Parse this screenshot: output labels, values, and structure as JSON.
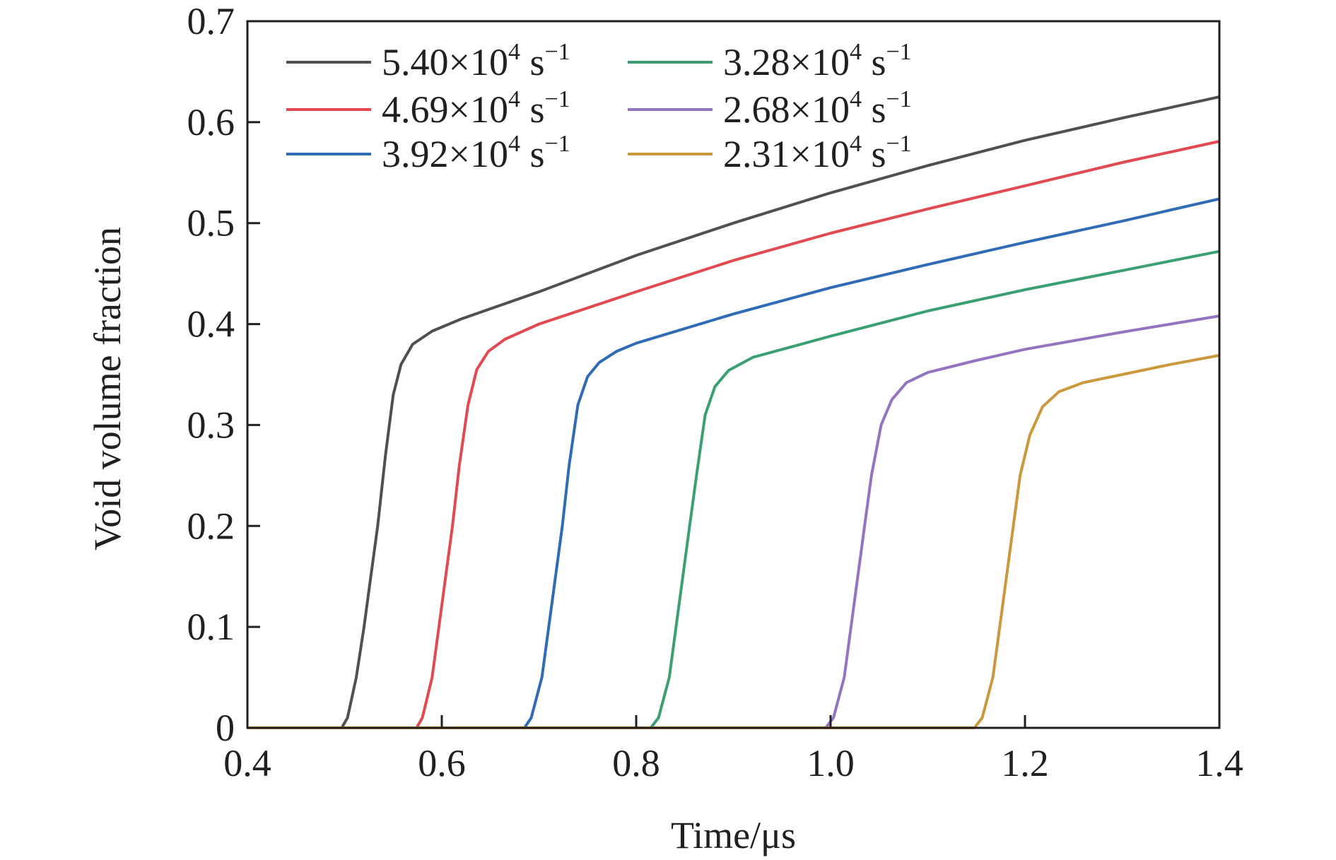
{
  "chart_data": {
    "type": "line",
    "title": "",
    "xlabel": "Time/μs",
    "ylabel": "Void volume fraction",
    "xlim": [
      0.4,
      1.4
    ],
    "ylim": [
      0,
      0.7
    ],
    "xticks": [
      0.4,
      0.6,
      0.8,
      1.0,
      1.2,
      1.4
    ],
    "xtick_labels": [
      "0.4",
      "0.6",
      "0.8",
      "1.0",
      "1.2",
      "1.4"
    ],
    "yticks": [
      0,
      0.1,
      0.2,
      0.3,
      0.4,
      0.5,
      0.6,
      0.7
    ],
    "ytick_labels": [
      "0",
      "0.1",
      "0.2",
      "0.3",
      "0.4",
      "0.5",
      "0.6",
      "0.7"
    ],
    "grid": false,
    "legend_position": "top-left",
    "series": [
      {
        "label_main": "5.40×10",
        "label_exp": "4",
        "label_unit": " s",
        "label_unit_exp": "−1",
        "color": "#505050",
        "points": [
          [
            0.4,
            0
          ],
          [
            0.497,
            0
          ],
          [
            0.503,
            0.01
          ],
          [
            0.512,
            0.05
          ],
          [
            0.52,
            0.1
          ],
          [
            0.527,
            0.15
          ],
          [
            0.534,
            0.2
          ],
          [
            0.542,
            0.27
          ],
          [
            0.55,
            0.33
          ],
          [
            0.558,
            0.36
          ],
          [
            0.57,
            0.38
          ],
          [
            0.59,
            0.393
          ],
          [
            0.62,
            0.405
          ],
          [
            0.7,
            0.432
          ],
          [
            0.8,
            0.468
          ],
          [
            0.9,
            0.5
          ],
          [
            1.0,
            0.53
          ],
          [
            1.1,
            0.557
          ],
          [
            1.2,
            0.582
          ],
          [
            1.3,
            0.604
          ],
          [
            1.4,
            0.625
          ]
        ]
      },
      {
        "label_main": "4.69×10",
        "label_exp": "4",
        "label_unit": " s",
        "label_unit_exp": "−1",
        "color": "#e04a50",
        "points": [
          [
            0.4,
            0
          ],
          [
            0.574,
            0
          ],
          [
            0.58,
            0.01
          ],
          [
            0.59,
            0.05
          ],
          [
            0.597,
            0.1
          ],
          [
            0.604,
            0.15
          ],
          [
            0.611,
            0.2
          ],
          [
            0.618,
            0.26
          ],
          [
            0.627,
            0.32
          ],
          [
            0.636,
            0.355
          ],
          [
            0.648,
            0.373
          ],
          [
            0.665,
            0.385
          ],
          [
            0.7,
            0.4
          ],
          [
            0.8,
            0.432
          ],
          [
            0.9,
            0.463
          ],
          [
            1.0,
            0.49
          ],
          [
            1.1,
            0.514
          ],
          [
            1.2,
            0.537
          ],
          [
            1.3,
            0.56
          ],
          [
            1.4,
            0.581
          ]
        ]
      },
      {
        "label_main": "3.92×10",
        "label_exp": "4",
        "label_unit": " s",
        "label_unit_exp": "−1",
        "color": "#2f6cb5",
        "points": [
          [
            0.4,
            0
          ],
          [
            0.685,
            0
          ],
          [
            0.692,
            0.01
          ],
          [
            0.703,
            0.05
          ],
          [
            0.71,
            0.1
          ],
          [
            0.717,
            0.15
          ],
          [
            0.724,
            0.2
          ],
          [
            0.731,
            0.26
          ],
          [
            0.74,
            0.32
          ],
          [
            0.75,
            0.348
          ],
          [
            0.762,
            0.362
          ],
          [
            0.78,
            0.373
          ],
          [
            0.8,
            0.381
          ],
          [
            0.9,
            0.41
          ],
          [
            1.0,
            0.436
          ],
          [
            1.1,
            0.459
          ],
          [
            1.2,
            0.481
          ],
          [
            1.3,
            0.502
          ],
          [
            1.4,
            0.524
          ]
        ]
      },
      {
        "label_main": "3.28×10",
        "label_exp": "4",
        "label_unit": " s",
        "label_unit_exp": "−1",
        "color": "#3aa071",
        "points": [
          [
            0.4,
            0
          ],
          [
            0.815,
            0
          ],
          [
            0.823,
            0.01
          ],
          [
            0.834,
            0.05
          ],
          [
            0.841,
            0.1
          ],
          [
            0.848,
            0.15
          ],
          [
            0.855,
            0.2
          ],
          [
            0.862,
            0.25
          ],
          [
            0.871,
            0.31
          ],
          [
            0.881,
            0.338
          ],
          [
            0.895,
            0.354
          ],
          [
            0.92,
            0.367
          ],
          [
            1.0,
            0.388
          ],
          [
            1.1,
            0.413
          ],
          [
            1.2,
            0.434
          ],
          [
            1.3,
            0.453
          ],
          [
            1.4,
            0.472
          ]
        ]
      },
      {
        "label_main": "2.68×10",
        "label_exp": "4",
        "label_unit": " s",
        "label_unit_exp": "−1",
        "color": "#9474c0",
        "points": [
          [
            0.4,
            0
          ],
          [
            0.995,
            0
          ],
          [
            1.003,
            0.01
          ],
          [
            1.014,
            0.05
          ],
          [
            1.021,
            0.1
          ],
          [
            1.028,
            0.15
          ],
          [
            1.035,
            0.2
          ],
          [
            1.042,
            0.25
          ],
          [
            1.052,
            0.3
          ],
          [
            1.063,
            0.325
          ],
          [
            1.078,
            0.342
          ],
          [
            1.1,
            0.352
          ],
          [
            1.15,
            0.364
          ],
          [
            1.2,
            0.375
          ],
          [
            1.3,
            0.392
          ],
          [
            1.4,
            0.408
          ]
        ]
      },
      {
        "label_main": "2.31×10",
        "label_exp": "4",
        "label_unit": " s",
        "label_unit_exp": "−1",
        "color": "#c9993c",
        "points": [
          [
            0.4,
            0
          ],
          [
            1.148,
            0
          ],
          [
            1.156,
            0.01
          ],
          [
            1.167,
            0.05
          ],
          [
            1.174,
            0.1
          ],
          [
            1.181,
            0.15
          ],
          [
            1.188,
            0.2
          ],
          [
            1.195,
            0.25
          ],
          [
            1.205,
            0.29
          ],
          [
            1.218,
            0.318
          ],
          [
            1.235,
            0.333
          ],
          [
            1.26,
            0.342
          ],
          [
            1.3,
            0.35
          ],
          [
            1.35,
            0.36
          ],
          [
            1.4,
            0.369
          ]
        ]
      }
    ]
  }
}
